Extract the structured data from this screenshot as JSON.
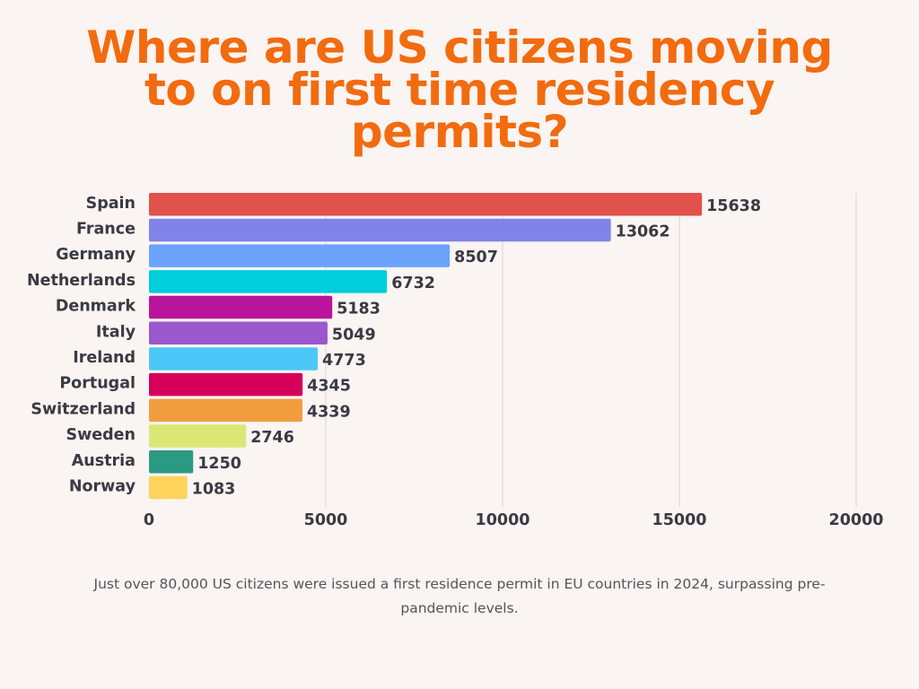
{
  "title_lines": [
    "Where are US citizens moving",
    "to on first time residency",
    "permits?"
  ],
  "caption": "Just over 80,000 US citizens were issued a first residence permit in EU countries in 2024, surpassing pre-pandemic levels.",
  "chart_data": {
    "type": "bar",
    "orientation": "horizontal",
    "title": "Where are US citizens moving to on first time residency permits?",
    "categories": [
      "Spain",
      "France",
      "Germany",
      "Netherlands",
      "Denmark",
      "Italy",
      "Ireland",
      "Portugal",
      "Switzerland",
      "Sweden",
      "Austria",
      "Norway"
    ],
    "values": [
      15638,
      13062,
      8507,
      6732,
      5183,
      5049,
      4773,
      4345,
      4339,
      2746,
      1250,
      1083
    ],
    "colors": [
      "#e0524a",
      "#8183e8",
      "#6ba4fa",
      "#00cedb",
      "#bb149c",
      "#9b58cc",
      "#4cc8f8",
      "#d6005a",
      "#f29d40",
      "#dce876",
      "#2a9a82",
      "#fdd35c"
    ],
    "xlim": [
      0,
      20000
    ],
    "xticks": [
      0,
      5000,
      10000,
      15000,
      20000
    ],
    "grid": true,
    "data_labels": true,
    "legend": "none"
  }
}
